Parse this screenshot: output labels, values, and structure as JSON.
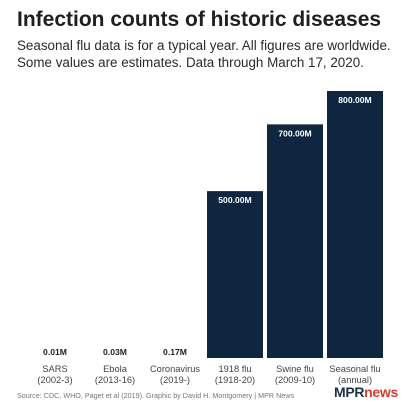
{
  "title": "Infection counts of historic diseases",
  "subtitle": "Seasonal flu data is for a typical year. All figures are worldwide. Some values are estimates. Data through March 17, 2020.",
  "source": "Source: CDC, WHO, Paget et al (2019). Graphic by David H. Montgomery | MPR News",
  "logo": {
    "part1": "MPR",
    "part2": "news"
  },
  "colors": {
    "bar": "#0f2640",
    "bar_label": "#ffffff",
    "value_label": "#1f1f1f",
    "axis_label": "#444444",
    "logo_mpr": "#1c3146",
    "logo_news": "#d43f2f"
  },
  "chart_data": {
    "type": "bar",
    "title": "Infection counts of historic diseases",
    "categories": [
      [
        "SARS",
        "(2002-3)"
      ],
      [
        "Ebola",
        "(2013-16)"
      ],
      [
        "Coronavirus",
        "(2019-)"
      ],
      [
        "1918 flu",
        "(1918-20)"
      ],
      [
        "Swine flu",
        "(2009-10)"
      ],
      [
        "Seasonal flu",
        "(annual)"
      ]
    ],
    "values": [
      0.01,
      0.03,
      0.17,
      500,
      700,
      800
    ],
    "value_labels": [
      "0.01M",
      "0.03M",
      "0.17M",
      "500.00M",
      "700.00M",
      "800.00M"
    ],
    "unit": "M",
    "ylim": [
      0,
      800
    ],
    "grid": false
  }
}
